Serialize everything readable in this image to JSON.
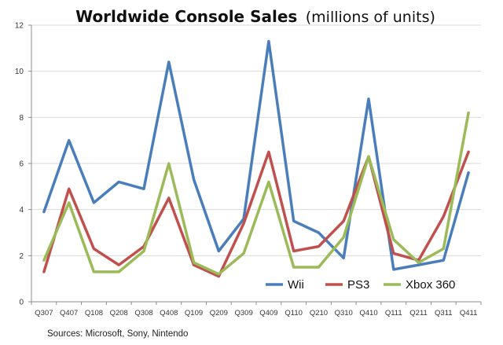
{
  "chart_data": {
    "type": "line",
    "title": "Worldwide Console Sales",
    "title_suffix": "(millions of units)",
    "source": "Sources: Microsoft, Sony, Nintendo",
    "categories": [
      "Q307",
      "Q407",
      "Q108",
      "Q208",
      "Q308",
      "Q408",
      "Q109",
      "Q209",
      "Q309",
      "Q409",
      "Q110",
      "Q210",
      "Q310",
      "Q410",
      "Q111",
      "Q211",
      "Q311",
      "Q411"
    ],
    "ylim": [
      0,
      12
    ],
    "yticks": [
      0,
      2,
      4,
      6,
      8,
      10,
      12
    ],
    "grid": true,
    "legend_position": "bottom-right",
    "series": [
      {
        "name": "Wii",
        "color": "#4a7ebb",
        "values": [
          3.9,
          7.0,
          4.3,
          5.2,
          4.9,
          10.4,
          5.3,
          2.2,
          3.6,
          11.3,
          3.5,
          3.0,
          1.9,
          8.8,
          1.4,
          1.6,
          1.8,
          5.6
        ]
      },
      {
        "name": "PS3",
        "color": "#c0504d",
        "values": [
          1.3,
          4.9,
          2.3,
          1.6,
          2.4,
          4.5,
          1.6,
          1.1,
          3.4,
          6.5,
          2.2,
          2.4,
          3.5,
          6.3,
          2.1,
          1.8,
          3.7,
          6.5
        ]
      },
      {
        "name": "Xbox 360",
        "color": "#9bbb59",
        "values": [
          1.8,
          4.3,
          1.3,
          1.3,
          2.2,
          6.0,
          1.7,
          1.2,
          2.1,
          5.2,
          1.5,
          1.5,
          2.8,
          6.3,
          2.7,
          1.7,
          2.3,
          8.2
        ]
      }
    ]
  }
}
